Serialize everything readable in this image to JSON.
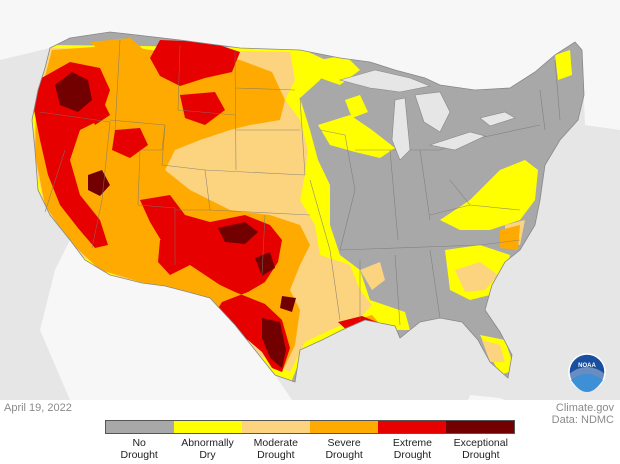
{
  "date": "April 19, 2022",
  "credit": {
    "site": "Climate.gov",
    "data": "Data: NDMC"
  },
  "logo_text": "NOAA",
  "colors": {
    "ocean": "#e6e6e6",
    "neighbor_land": "#f7f7f7",
    "border": "#666666",
    "none": "#a8a8a8",
    "d0": "#ffff00",
    "d1": "#fcd37f",
    "d2": "#ffaa00",
    "d3": "#e60000",
    "d4": "#730000"
  },
  "legend": [
    {
      "key": "none",
      "line1": "No",
      "line2": "Drought",
      "color": "#a8a8a8"
    },
    {
      "key": "d0",
      "line1": "Abnormally",
      "line2": "Dry",
      "color": "#ffff00"
    },
    {
      "key": "d1",
      "line1": "Moderate",
      "line2": "Drought",
      "color": "#fcd37f"
    },
    {
      "key": "d2",
      "line1": "Severe",
      "line2": "Drought",
      "color": "#ffaa00"
    },
    {
      "key": "d3",
      "line1": "Extreme",
      "line2": "Drought",
      "color": "#e60000"
    },
    {
      "key": "d4",
      "line1": "Exceptional",
      "line2": "Drought",
      "color": "#730000"
    }
  ]
}
